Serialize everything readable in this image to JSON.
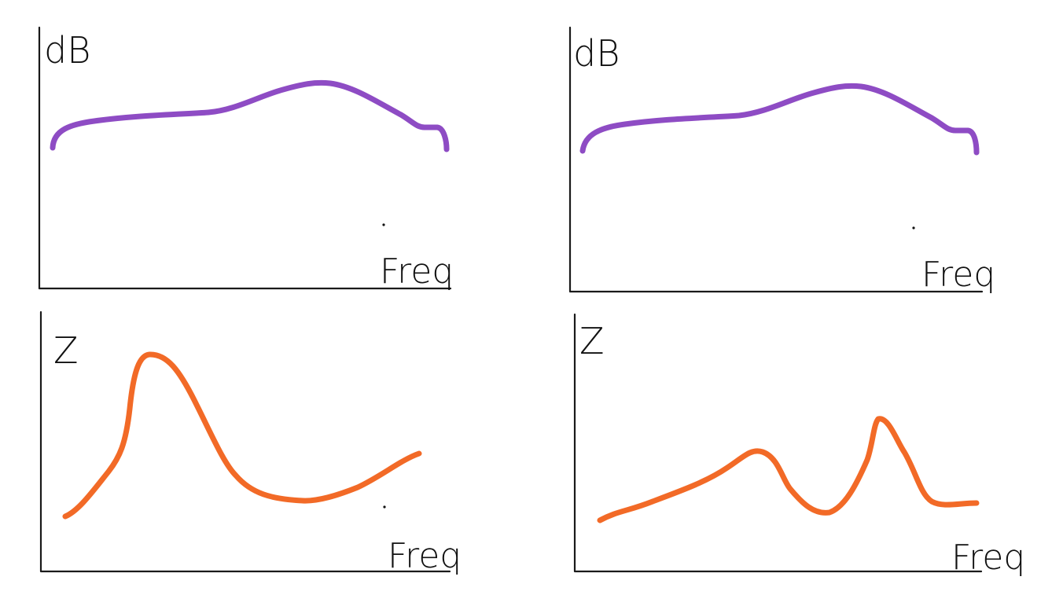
{
  "colors": {
    "db_curve": "#8e4cc4",
    "z_curve": "#f26a27",
    "ink": "#111111"
  },
  "plots": [
    {
      "id": "top-left",
      "y_label": "dB",
      "x_label": "Freq",
      "curve_color_key": "db_curve"
    },
    {
      "id": "top-right",
      "y_label": "dB",
      "x_label": "Freq",
      "curve_color_key": "db_curve"
    },
    {
      "id": "bottom-left",
      "y_label": "Z",
      "x_label": "Freq",
      "curve_color_key": "z_curve"
    },
    {
      "id": "bottom-right",
      "y_label": "Z",
      "x_label": "Freq",
      "curve_color_key": "z_curve"
    }
  ]
}
